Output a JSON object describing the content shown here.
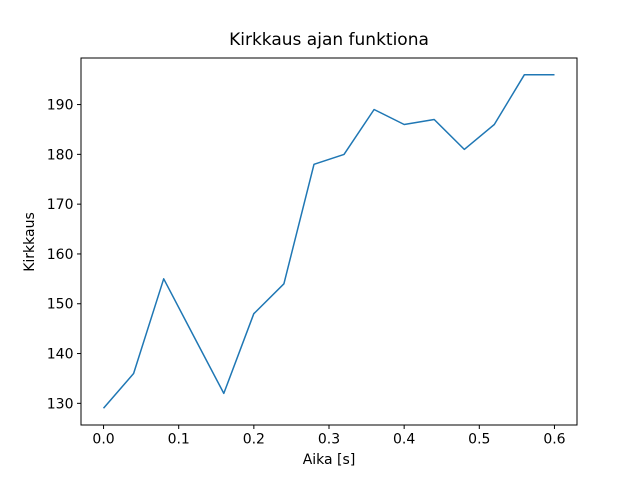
{
  "figure": {
    "background": "#ffffff"
  },
  "chart_data": {
    "type": "line",
    "title": "Kirkkaus ajan funktiona",
    "xlabel": "Aika [s]",
    "ylabel": "Kirkkaus",
    "x": [
      0.0,
      0.04,
      0.08,
      0.12,
      0.16,
      0.2,
      0.24,
      0.28,
      0.32,
      0.36,
      0.4,
      0.44,
      0.48,
      0.52,
      0.56,
      0.6
    ],
    "y": [
      129,
      136,
      155,
      143.5,
      132,
      148,
      154,
      178,
      180,
      189,
      186,
      187,
      181,
      186,
      196,
      196
    ],
    "xlim": [
      -0.03,
      0.63
    ],
    "ylim": [
      125.65,
      199.35
    ],
    "xticks": {
      "values": [
        0.0,
        0.1,
        0.2,
        0.3,
        0.4,
        0.5,
        0.6
      ],
      "labels": [
        "0.0",
        "0.1",
        "0.2",
        "0.3",
        "0.4",
        "0.5",
        "0.6"
      ]
    },
    "yticks": {
      "values": [
        130,
        140,
        150,
        160,
        170,
        180,
        190
      ],
      "labels": [
        "130",
        "140",
        "150",
        "160",
        "170",
        "180",
        "190"
      ]
    },
    "grid": false,
    "line_color": "#1f77b4",
    "line_width": 1.5,
    "axis_color": "#000000",
    "text_color": "#000000"
  }
}
